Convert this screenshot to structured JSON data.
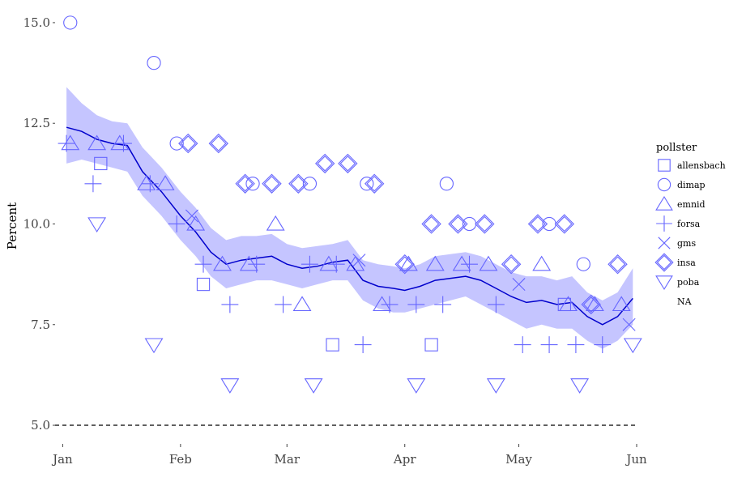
{
  "chart_data": {
    "type": "scatter",
    "title": "",
    "xlabel": "",
    "ylabel": "Percent",
    "ylim": [
      4.9,
      15.2
    ],
    "xlim": [
      "2020-12-30",
      "2021-06-01"
    ],
    "y_ticks": [
      5.0,
      7.5,
      10.0,
      12.5,
      15.0
    ],
    "y_tick_labels": [
      "5.0",
      "7.5",
      "10.0",
      "12.5",
      "15.0"
    ],
    "x_ticks": [
      "2021-01-01",
      "2021-02-01",
      "2021-03-01",
      "2021-04-01",
      "2021-05-01",
      "2021-06-01"
    ],
    "x_tick_labels": [
      "Jan",
      "Feb",
      "Mar",
      "Apr",
      "May",
      "Jun"
    ],
    "grid": false,
    "reference_line": {
      "y": 5.0,
      "style": "dashed",
      "color": "#000000"
    },
    "colors": {
      "points": "#6666ff",
      "trend": "#0000cc",
      "band": "#c5c5ff",
      "axis": "#444444"
    },
    "legend": {
      "title": "pollster",
      "placement": "right",
      "entries": [
        {
          "label": "allensbach",
          "shape": "square"
        },
        {
          "label": "dimap",
          "shape": "circle"
        },
        {
          "label": "emnid",
          "shape": "triangle-up"
        },
        {
          "label": "forsa",
          "shape": "plus"
        },
        {
          "label": "gms",
          "shape": "cross"
        },
        {
          "label": "insa",
          "shape": "diamond"
        },
        {
          "label": "poba",
          "shape": "triangle-down"
        },
        {
          "label": "NA",
          "shape": "none"
        }
      ]
    },
    "trend": {
      "x": [
        "2021-01-02",
        "2021-01-06",
        "2021-01-10",
        "2021-01-14",
        "2021-01-18",
        "2021-01-22",
        "2021-01-27",
        "2021-02-01",
        "2021-02-05",
        "2021-02-09",
        "2021-02-13",
        "2021-02-17",
        "2021-02-21",
        "2021-02-25",
        "2021-03-01",
        "2021-03-05",
        "2021-03-09",
        "2021-03-13",
        "2021-03-17",
        "2021-03-21",
        "2021-03-25",
        "2021-03-29",
        "2021-04-01",
        "2021-04-05",
        "2021-04-09",
        "2021-04-13",
        "2021-04-17",
        "2021-04-21",
        "2021-04-25",
        "2021-04-29",
        "2021-05-03",
        "2021-05-07",
        "2021-05-11",
        "2021-05-15",
        "2021-05-19",
        "2021-05-23",
        "2021-05-27",
        "2021-05-31"
      ],
      "y": [
        12.4,
        12.3,
        12.1,
        12.0,
        11.95,
        11.3,
        10.8,
        10.2,
        9.8,
        9.3,
        9.0,
        9.1,
        9.15,
        9.2,
        9.0,
        8.9,
        8.95,
        9.05,
        9.1,
        8.6,
        8.45,
        8.4,
        8.35,
        8.45,
        8.6,
        8.65,
        8.7,
        8.6,
        8.4,
        8.2,
        8.05,
        8.1,
        8.0,
        8.05,
        7.7,
        7.5,
        7.7,
        8.15
      ],
      "lower": [
        11.5,
        11.6,
        11.5,
        11.4,
        11.3,
        10.7,
        10.2,
        9.6,
        9.2,
        8.7,
        8.4,
        8.5,
        8.6,
        8.6,
        8.5,
        8.4,
        8.5,
        8.6,
        8.6,
        8.1,
        7.9,
        7.8,
        7.8,
        7.9,
        8.0,
        8.1,
        8.2,
        8.0,
        7.8,
        7.6,
        7.4,
        7.5,
        7.4,
        7.4,
        7.1,
        6.9,
        7.1,
        7.5
      ],
      "upper": [
        13.4,
        13.0,
        12.7,
        12.55,
        12.5,
        11.9,
        11.4,
        10.8,
        10.4,
        9.9,
        9.6,
        9.7,
        9.7,
        9.75,
        9.5,
        9.4,
        9.45,
        9.5,
        9.6,
        9.1,
        9.0,
        8.95,
        8.9,
        9.0,
        9.2,
        9.25,
        9.3,
        9.2,
        9.0,
        8.8,
        8.7,
        8.7,
        8.6,
        8.7,
        8.3,
        8.1,
        8.3,
        8.9
      ]
    },
    "series": [
      {
        "name": "allensbach",
        "shape": "square",
        "x": [
          "2021-01-11",
          "2021-02-07",
          "2021-03-13",
          "2021-04-08",
          "2021-05-13"
        ],
        "y": [
          11.5,
          8.5,
          7.0,
          7.0,
          8.0
        ]
      },
      {
        "name": "dimap",
        "shape": "circle",
        "x": [
          "2021-01-03",
          "2021-01-25",
          "2021-01-31",
          "2021-02-20",
          "2021-03-07",
          "2021-03-22",
          "2021-04-12",
          "2021-04-18",
          "2021-05-09",
          "2021-05-18"
        ],
        "y": [
          15.0,
          14.0,
          12.0,
          11.0,
          11.0,
          11.0,
          11.0,
          10.0,
          10.0,
          9.0
        ]
      },
      {
        "name": "emnid",
        "shape": "triangle-up",
        "x": [
          "2021-01-03",
          "2021-01-10",
          "2021-01-16",
          "2021-01-23",
          "2021-01-28",
          "2021-02-05",
          "2021-02-12",
          "2021-02-19",
          "2021-02-26",
          "2021-03-05",
          "2021-03-12",
          "2021-03-19",
          "2021-03-26",
          "2021-04-02",
          "2021-04-09",
          "2021-04-16",
          "2021-04-23",
          "2021-05-07",
          "2021-05-14",
          "2021-05-21",
          "2021-05-28"
        ],
        "y": [
          12.0,
          12.0,
          12.0,
          11.0,
          11.0,
          10.0,
          9.0,
          9.0,
          10.0,
          8.0,
          9.0,
          9.0,
          8.0,
          9.0,
          9.0,
          9.0,
          9.0,
          9.0,
          8.0,
          8.0,
          8.0
        ]
      },
      {
        "name": "forsa",
        "shape": "plus",
        "x": [
          "2021-01-02",
          "2021-01-09",
          "2021-01-17",
          "2021-01-24",
          "2021-01-31",
          "2021-02-07",
          "2021-02-14",
          "2021-02-21",
          "2021-02-28",
          "2021-03-07",
          "2021-03-14",
          "2021-03-21",
          "2021-03-28",
          "2021-04-04",
          "2021-04-11",
          "2021-04-18",
          "2021-04-25",
          "2021-05-02",
          "2021-05-09",
          "2021-05-16",
          "2021-05-23"
        ],
        "y": [
          12.0,
          11.0,
          12.0,
          11.0,
          10.0,
          9.0,
          8.0,
          9.0,
          8.0,
          9.0,
          9.0,
          7.0,
          8.0,
          8.0,
          8.0,
          9.0,
          8.0,
          7.0,
          7.0,
          7.0,
          7.0
        ]
      },
      {
        "name": "gms",
        "shape": "cross",
        "x": [
          "2021-02-04",
          "2021-03-20",
          "2021-05-01",
          "2021-05-30"
        ],
        "y": [
          10.2,
          9.1,
          8.5,
          7.5
        ]
      },
      {
        "name": "insa",
        "shape": "diamond",
        "x": [
          "2021-02-03",
          "2021-02-11",
          "2021-02-18",
          "2021-02-25",
          "2021-03-04",
          "2021-03-11",
          "2021-03-17",
          "2021-03-24",
          "2021-04-01",
          "2021-04-08",
          "2021-04-15",
          "2021-04-22",
          "2021-04-29",
          "2021-05-06",
          "2021-05-13",
          "2021-05-20",
          "2021-05-27"
        ],
        "y": [
          12.0,
          12.0,
          11.0,
          11.0,
          11.0,
          11.5,
          11.5,
          11.0,
          9.0,
          10.0,
          10.0,
          10.0,
          9.0,
          10.0,
          10.0,
          8.0,
          9.0
        ]
      },
      {
        "name": "poba",
        "shape": "triangle-down",
        "x": [
          "2021-01-10",
          "2021-01-25",
          "2021-02-14",
          "2021-03-08",
          "2021-04-04",
          "2021-04-25",
          "2021-05-17",
          "2021-05-31"
        ],
        "y": [
          10.0,
          7.0,
          6.0,
          6.0,
          6.0,
          6.0,
          6.0,
          7.0
        ]
      }
    ]
  }
}
